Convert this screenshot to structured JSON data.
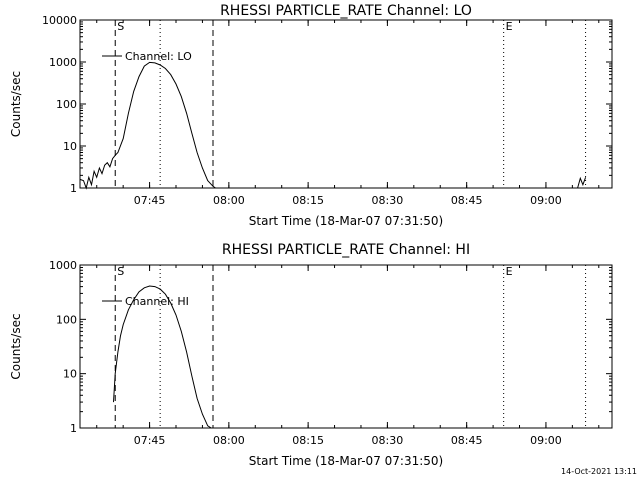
{
  "colors": {
    "background": "#ffffff",
    "foreground": "#000000"
  },
  "timestamp": "14-Oct-2021 13:11",
  "chart_data": [
    {
      "type": "line",
      "title": "RHESSI PARTICLE_RATE Channel: LO",
      "xlabel": "Start Time (18-Mar-07 07:31:50)",
      "ylabel": "Counts/sec",
      "y_scale": "log",
      "ylim": [
        1,
        10000
      ],
      "xlim": [
        "07:31:50",
        "09:12:30"
      ],
      "x_ticks": [
        "07:45",
        "08:00",
        "08:15",
        "08:30",
        "08:45",
        "09:00"
      ],
      "y_ticks": [
        "1",
        "10",
        "100",
        "1000",
        "10000"
      ],
      "legend_position": "top-left",
      "series": [
        {
          "name": "Channel: LO",
          "x": [
            "07:31:50",
            "07:32:30",
            "07:33:00",
            "07:33:30",
            "07:34:00",
            "07:34:30",
            "07:35:00",
            "07:35:30",
            "07:36:00",
            "07:36:30",
            "07:37:00",
            "07:37:30",
            "07:38:00",
            "07:38:30",
            "07:39:00",
            "07:40:00",
            "07:41:00",
            "07:42:00",
            "07:43:00",
            "07:44:00",
            "07:45:00",
            "07:46:00",
            "07:47:00",
            "07:48:00",
            "07:49:00",
            "07:50:00",
            "07:51:00",
            "07:52:00",
            "07:53:00",
            "07:54:00",
            "07:55:00",
            "07:56:00",
            "07:57:00",
            "07:57:30",
            "09:06:00",
            "09:06:30",
            "09:07:00",
            "09:07:30"
          ],
          "values": [
            1.6,
            1.5,
            1.0,
            1.8,
            1.2,
            2.5,
            1.8,
            3,
            2.2,
            3.5,
            4,
            3.2,
            5,
            6,
            7,
            15,
            60,
            200,
            450,
            800,
            980,
            950,
            850,
            700,
            500,
            300,
            150,
            60,
            20,
            7,
            3,
            1.5,
            1.1,
            1.0,
            1.0,
            1.7,
            1.2,
            1.8
          ]
        }
      ],
      "annotations": [
        {
          "label": "S",
          "time": "07:38:30",
          "line_style": "dashed"
        },
        {
          "label": "",
          "time": "07:57:00",
          "line_style": "dashed"
        },
        {
          "label": "",
          "time": "07:47:00",
          "line_style": "dotted"
        },
        {
          "label": "E",
          "time": "08:52:00",
          "line_style": "dotted"
        },
        {
          "label": "",
          "time": "09:07:30",
          "line_style": "dotted"
        }
      ]
    },
    {
      "type": "line",
      "title": "RHESSI PARTICLE_RATE Channel: HI",
      "xlabel": "Start Time (18-Mar-07 07:31:50)",
      "ylabel": "Counts/sec",
      "y_scale": "log",
      "ylim": [
        1,
        1000
      ],
      "xlim": [
        "07:31:50",
        "09:12:30"
      ],
      "x_ticks": [
        "07:45",
        "08:00",
        "08:15",
        "08:30",
        "08:45",
        "09:00"
      ],
      "y_ticks": [
        "1",
        "10",
        "100",
        "1000"
      ],
      "legend_position": "top-left",
      "series": [
        {
          "name": "Channel: HI",
          "x": [
            "07:38:10",
            "07:38:30",
            "07:39:00",
            "07:39:30",
            "07:40:00",
            "07:41:00",
            "07:42:00",
            "07:43:00",
            "07:44:00",
            "07:45:00",
            "07:46:00",
            "07:47:00",
            "07:48:00",
            "07:49:00",
            "07:50:00",
            "07:51:00",
            "07:52:00",
            "07:53:00",
            "07:54:00",
            "07:55:00",
            "07:56:00",
            "07:56:40"
          ],
          "values": [
            3,
            10,
            25,
            50,
            80,
            150,
            230,
            320,
            380,
            410,
            400,
            360,
            290,
            200,
            120,
            60,
            25,
            9,
            3.5,
            1.8,
            1.1,
            1.0
          ]
        }
      ],
      "annotations": [
        {
          "label": "S",
          "time": "07:38:30",
          "line_style": "dashed"
        },
        {
          "label": "",
          "time": "07:57:00",
          "line_style": "dashed"
        },
        {
          "label": "",
          "time": "07:47:00",
          "line_style": "dotted"
        },
        {
          "label": "E",
          "time": "08:52:00",
          "line_style": "dotted"
        },
        {
          "label": "",
          "time": "09:07:30",
          "line_style": "dotted"
        }
      ]
    }
  ]
}
